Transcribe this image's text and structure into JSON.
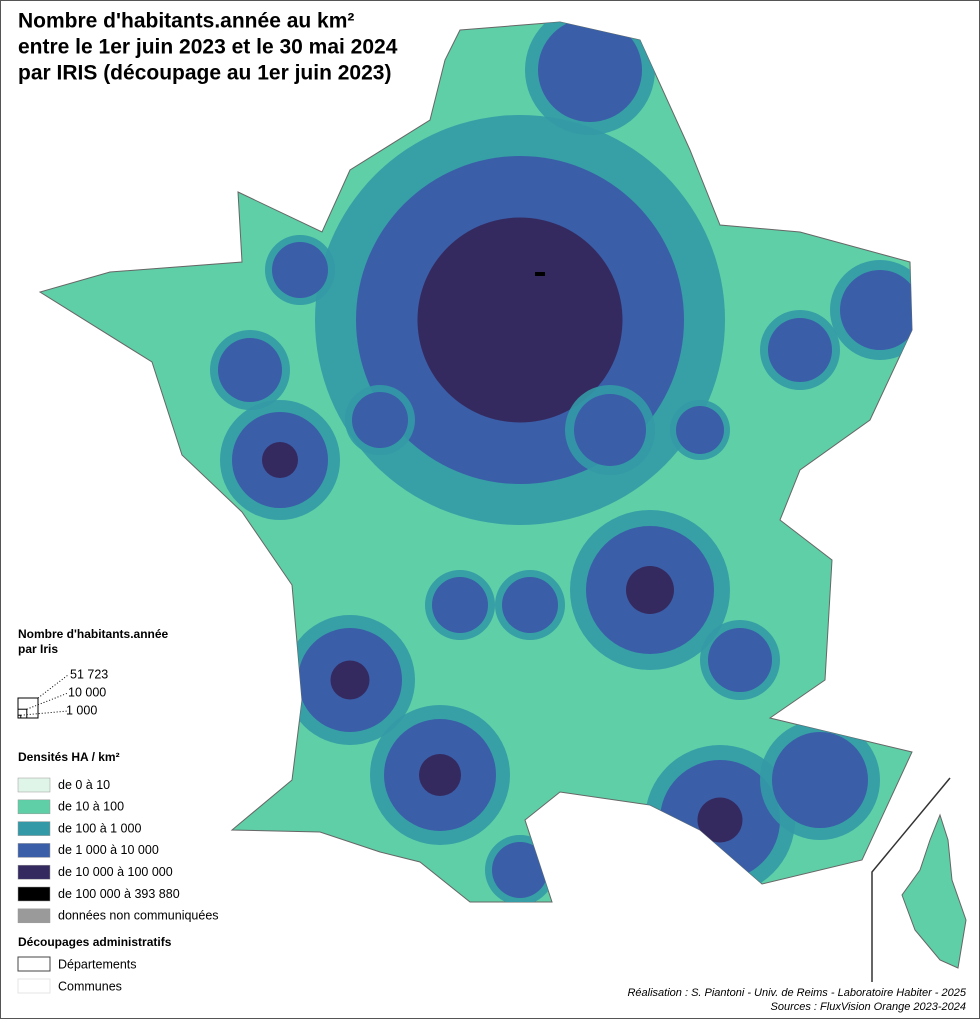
{
  "title": [
    "Nombre d'habitants.année au km²",
    "entre le 1er juin 2023 et le 30 mai 2024",
    "par IRIS (découpage au 1er juin 2023)"
  ],
  "legend_size": {
    "title": [
      "Nombre d'habitants.année",
      "par Iris"
    ],
    "items": [
      {
        "value": 51723,
        "label": "51 723"
      },
      {
        "value": 10000,
        "label": "10 000"
      },
      {
        "value": 1000,
        "label": "1 000"
      }
    ]
  },
  "legend_density": {
    "title": "Densités HA / km²",
    "classes": [
      {
        "label": "de 0 à 10",
        "color": "#dff5e8"
      },
      {
        "label": "de 10 à 100",
        "color": "#5ecfa7"
      },
      {
        "label": "de 100 à 1 000",
        "color": "#3399a6"
      },
      {
        "label": "de 1 000 à 10 000",
        "color": "#3a5ea8"
      },
      {
        "label": "de 10 000 à 100 000",
        "color": "#352a5f"
      },
      {
        "label": "de 100 000 à 393 880",
        "color": "#000000"
      },
      {
        "label": "données non communiquées",
        "color": "#9a9a9a"
      }
    ]
  },
  "legend_admin": {
    "title": "Découpages administratifs",
    "items": [
      "Départements",
      "Communes"
    ]
  },
  "credits": [
    "Réalisation : S. Piantoni - Univ. de Reims - Laboratoire Habiter - 2025",
    "Sources : FluxVision Orange 2023-2024"
  ]
}
